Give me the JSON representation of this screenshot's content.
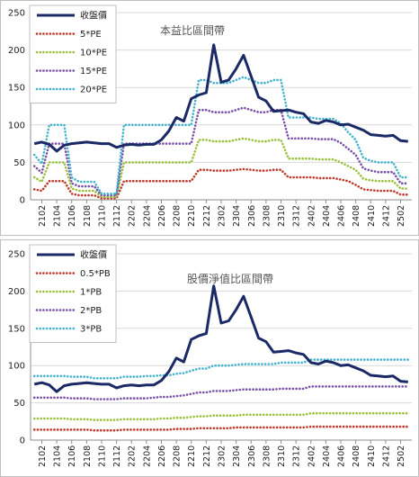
{
  "colors": {
    "price": "#1b2a66",
    "red": "#c0392b",
    "green": "#9ac23c",
    "purple": "#7a52a8",
    "cyan": "#45b3cf",
    "grid": "#d9d9d9"
  },
  "chart_data": [
    {
      "type": "line",
      "title": "本益比區間帶",
      "ylim": [
        0,
        250
      ],
      "yticks": [
        0,
        50,
        100,
        150,
        200,
        250
      ],
      "grid": "horizontal",
      "legend": "top-left",
      "x": [
        "2101",
        "2102",
        "2103",
        "2104",
        "2105",
        "2106",
        "2107",
        "2108",
        "2109",
        "2110",
        "2111",
        "2112",
        "2201",
        "2202",
        "2203",
        "2204",
        "2205",
        "2206",
        "2207",
        "2208",
        "2209",
        "2210",
        "2211",
        "2212",
        "2301",
        "2302",
        "2303",
        "2304",
        "2305",
        "2306",
        "2307",
        "2308",
        "2309",
        "2310",
        "2311",
        "2312",
        "2401",
        "2402",
        "2403",
        "2404",
        "2405",
        "2406",
        "2407",
        "2408",
        "2409",
        "2410",
        "2411",
        "2412",
        "2501",
        "2502",
        "2503"
      ],
      "xtick_labels": [
        "2102",
        "2104",
        "2106",
        "2108",
        "2110",
        "2112",
        "2202",
        "2204",
        "2206",
        "2208",
        "2210",
        "2212",
        "2302",
        "2304",
        "2306",
        "2308",
        "2310",
        "2312",
        "2402",
        "2404",
        "2406",
        "2408",
        "2410",
        "2412",
        "2502"
      ],
      "series": [
        {
          "name": "收盤價",
          "color_key": "price",
          "style": "solid",
          "values": [
            75,
            77,
            74,
            65,
            73,
            75,
            76,
            77,
            76,
            75,
            75,
            70,
            73,
            74,
            73,
            74,
            74,
            80,
            92,
            110,
            105,
            135,
            140,
            143,
            207,
            157,
            160,
            175,
            193,
            165,
            137,
            132,
            118,
            119,
            120,
            117,
            115,
            104,
            102,
            106,
            104,
            100,
            101,
            97,
            93,
            87,
            86,
            85,
            86,
            79,
            78
          ]
        },
        {
          "name": "5*PE",
          "color_key": "red",
          "style": "dotted",
          "values": [
            14,
            12,
            25,
            25,
            25,
            8,
            6,
            6,
            6,
            2,
            2,
            2,
            25,
            25,
            25,
            25,
            25,
            25,
            25,
            25,
            25,
            25,
            40,
            40,
            39,
            39,
            39,
            40,
            41,
            40,
            39,
            39,
            40,
            40,
            30,
            30,
            30,
            30,
            29,
            29,
            29,
            27,
            25,
            20,
            14,
            13,
            12,
            12,
            12,
            7,
            7
          ]
        },
        {
          "name": "10*PE",
          "color_key": "green",
          "style": "dotted",
          "values": [
            30,
            24,
            50,
            50,
            50,
            15,
            12,
            12,
            12,
            4,
            4,
            4,
            50,
            50,
            50,
            50,
            50,
            50,
            50,
            50,
            50,
            50,
            80,
            80,
            78,
            78,
            78,
            80,
            82,
            80,
            78,
            78,
            80,
            80,
            55,
            55,
            55,
            55,
            54,
            54,
            54,
            50,
            45,
            40,
            28,
            26,
            25,
            25,
            25,
            15,
            15
          ]
        },
        {
          "name": "15*PE",
          "color_key": "purple",
          "style": "dotted",
          "values": [
            45,
            36,
            75,
            75,
            75,
            22,
            18,
            18,
            18,
            6,
            6,
            6,
            75,
            75,
            75,
            75,
            75,
            75,
            75,
            75,
            75,
            75,
            120,
            120,
            117,
            117,
            117,
            120,
            123,
            120,
            117,
            117,
            120,
            120,
            82,
            82,
            82,
            82,
            81,
            81,
            81,
            76,
            68,
            60,
            42,
            39,
            37,
            37,
            37,
            22,
            22
          ]
        },
        {
          "name": "20*PE",
          "color_key": "cyan",
          "style": "dotted",
          "values": [
            60,
            48,
            100,
            100,
            100,
            30,
            24,
            24,
            24,
            8,
            8,
            8,
            100,
            100,
            100,
            100,
            100,
            100,
            100,
            100,
            100,
            100,
            160,
            160,
            156,
            156,
            156,
            160,
            164,
            160,
            156,
            156,
            160,
            160,
            110,
            110,
            110,
            110,
            108,
            108,
            108,
            102,
            90,
            80,
            56,
            52,
            50,
            50,
            50,
            30,
            30
          ]
        }
      ]
    },
    {
      "type": "line",
      "title": "股價淨值比區間帶",
      "ylim": [
        0,
        250
      ],
      "yticks": [
        0,
        50,
        100,
        150,
        200,
        250
      ],
      "grid": "horizontal",
      "legend": "top-left",
      "x": [
        "2101",
        "2102",
        "2103",
        "2104",
        "2105",
        "2106",
        "2107",
        "2108",
        "2109",
        "2110",
        "2111",
        "2112",
        "2201",
        "2202",
        "2203",
        "2204",
        "2205",
        "2206",
        "2207",
        "2208",
        "2209",
        "2210",
        "2211",
        "2212",
        "2301",
        "2302",
        "2303",
        "2304",
        "2305",
        "2306",
        "2307",
        "2308",
        "2309",
        "2310",
        "2311",
        "2312",
        "2401",
        "2402",
        "2403",
        "2404",
        "2405",
        "2406",
        "2407",
        "2408",
        "2409",
        "2410",
        "2411",
        "2412",
        "2501",
        "2502",
        "2503"
      ],
      "xtick_labels": [
        "2102",
        "2104",
        "2106",
        "2108",
        "2110",
        "2112",
        "2202",
        "2204",
        "2206",
        "2208",
        "2210",
        "2212",
        "2302",
        "2304",
        "2306",
        "2308",
        "2310",
        "2312",
        "2402",
        "2404",
        "2406",
        "2408",
        "2410",
        "2412",
        "2502"
      ],
      "series": [
        {
          "name": "收盤價",
          "color_key": "price",
          "style": "solid",
          "values": [
            75,
            77,
            74,
            65,
            73,
            75,
            76,
            77,
            76,
            75,
            75,
            70,
            73,
            74,
            73,
            74,
            74,
            80,
            92,
            110,
            105,
            135,
            140,
            143,
            207,
            157,
            160,
            175,
            193,
            165,
            137,
            132,
            118,
            119,
            120,
            117,
            115,
            104,
            102,
            106,
            104,
            100,
            101,
            97,
            93,
            87,
            86,
            85,
            86,
            79,
            78
          ]
        },
        {
          "name": "0.5*PB",
          "color_key": "red",
          "style": "dotted",
          "values": [
            14,
            14,
            14,
            14,
            14,
            14,
            14,
            14,
            13,
            13,
            13,
            13,
            14,
            14,
            14,
            14,
            14,
            14,
            14,
            15,
            15,
            15,
            16,
            16,
            16,
            16,
            16,
            17,
            17,
            17,
            17,
            17,
            17,
            17,
            17,
            17,
            17,
            18,
            18,
            18,
            18,
            18,
            18,
            18,
            18,
            18,
            18,
            18,
            18,
            18,
            18
          ]
        },
        {
          "name": "1*PB",
          "color_key": "green",
          "style": "dotted",
          "values": [
            29,
            29,
            29,
            29,
            29,
            28,
            28,
            28,
            27,
            27,
            27,
            27,
            28,
            28,
            28,
            28,
            28,
            29,
            29,
            30,
            30,
            31,
            32,
            32,
            33,
            33,
            33,
            33,
            34,
            34,
            34,
            34,
            34,
            34,
            34,
            34,
            34,
            36,
            36,
            36,
            36,
            36,
            36,
            36,
            36,
            36,
            36,
            36,
            36,
            36,
            36
          ]
        },
        {
          "name": "2*PB",
          "color_key": "purple",
          "style": "dotted",
          "values": [
            57,
            57,
            57,
            57,
            57,
            56,
            56,
            56,
            55,
            55,
            55,
            55,
            56,
            56,
            56,
            56,
            57,
            58,
            58,
            59,
            60,
            62,
            64,
            64,
            66,
            66,
            66,
            67,
            68,
            68,
            68,
            68,
            68,
            69,
            69,
            69,
            69,
            72,
            72,
            72,
            72,
            72,
            72,
            72,
            72,
            72,
            72,
            72,
            72,
            72,
            72
          ]
        },
        {
          "name": "3*PB",
          "color_key": "cyan",
          "style": "dotted",
          "values": [
            86,
            86,
            86,
            86,
            86,
            85,
            85,
            85,
            83,
            83,
            83,
            83,
            85,
            85,
            85,
            86,
            86,
            87,
            87,
            89,
            90,
            93,
            96,
            96,
            100,
            100,
            100,
            101,
            102,
            102,
            102,
            102,
            102,
            104,
            104,
            104,
            104,
            108,
            108,
            108,
            108,
            108,
            108,
            108,
            108,
            108,
            108,
            108,
            108,
            108,
            108
          ]
        }
      ]
    }
  ]
}
